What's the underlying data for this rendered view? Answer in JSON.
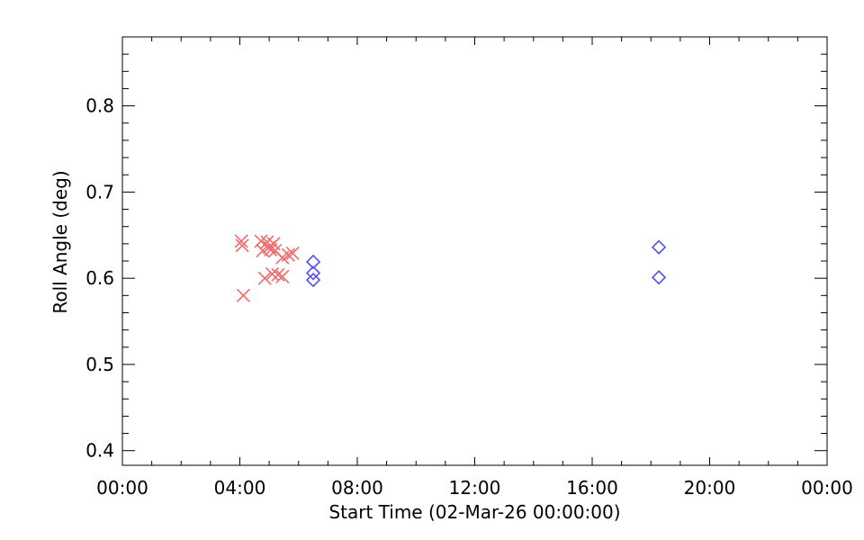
{
  "chart_data": {
    "type": "scatter",
    "xlabel": "Start Time (02-Mar-26 00:00:00)",
    "ylabel": "Roll Angle (deg)",
    "xlim": [
      0,
      24
    ],
    "ylim": [
      0.383,
      0.88
    ],
    "x_tick_values": [
      0,
      4,
      8,
      12,
      16,
      20,
      24
    ],
    "x_tick_labels": [
      "00:00",
      "04:00",
      "08:00",
      "12:00",
      "16:00",
      "20:00",
      "00:00"
    ],
    "y_tick_values": [
      0.4,
      0.5,
      0.6,
      0.7,
      0.8
    ],
    "y_tick_labels": [
      "0.4",
      "0.5",
      "0.6",
      "0.7",
      "0.8"
    ],
    "grid": false,
    "series": [
      {
        "marker": "x",
        "color": "#ee6a6a",
        "points": [
          {
            "x": 4.05,
            "y": 0.643
          },
          {
            "x": 4.08,
            "y": 0.638
          },
          {
            "x": 4.12,
            "y": 0.58
          },
          {
            "x": 4.72,
            "y": 0.643
          },
          {
            "x": 4.78,
            "y": 0.632
          },
          {
            "x": 4.85,
            "y": 0.6
          },
          {
            "x": 4.93,
            "y": 0.642
          },
          {
            "x": 5.0,
            "y": 0.636
          },
          {
            "x": 5.05,
            "y": 0.633
          },
          {
            "x": 5.1,
            "y": 0.605
          },
          {
            "x": 5.15,
            "y": 0.64
          },
          {
            "x": 5.2,
            "y": 0.632
          },
          {
            "x": 5.3,
            "y": 0.604
          },
          {
            "x": 5.45,
            "y": 0.624
          },
          {
            "x": 5.45,
            "y": 0.602
          },
          {
            "x": 5.65,
            "y": 0.627
          },
          {
            "x": 5.8,
            "y": 0.629
          }
        ]
      },
      {
        "marker": "diamond",
        "color": "#5050ee",
        "points": [
          {
            "x": 6.5,
            "y": 0.619
          },
          {
            "x": 6.5,
            "y": 0.606
          },
          {
            "x": 6.5,
            "y": 0.598
          },
          {
            "x": 18.27,
            "y": 0.636
          },
          {
            "x": 18.27,
            "y": 0.601
          }
        ]
      }
    ]
  }
}
